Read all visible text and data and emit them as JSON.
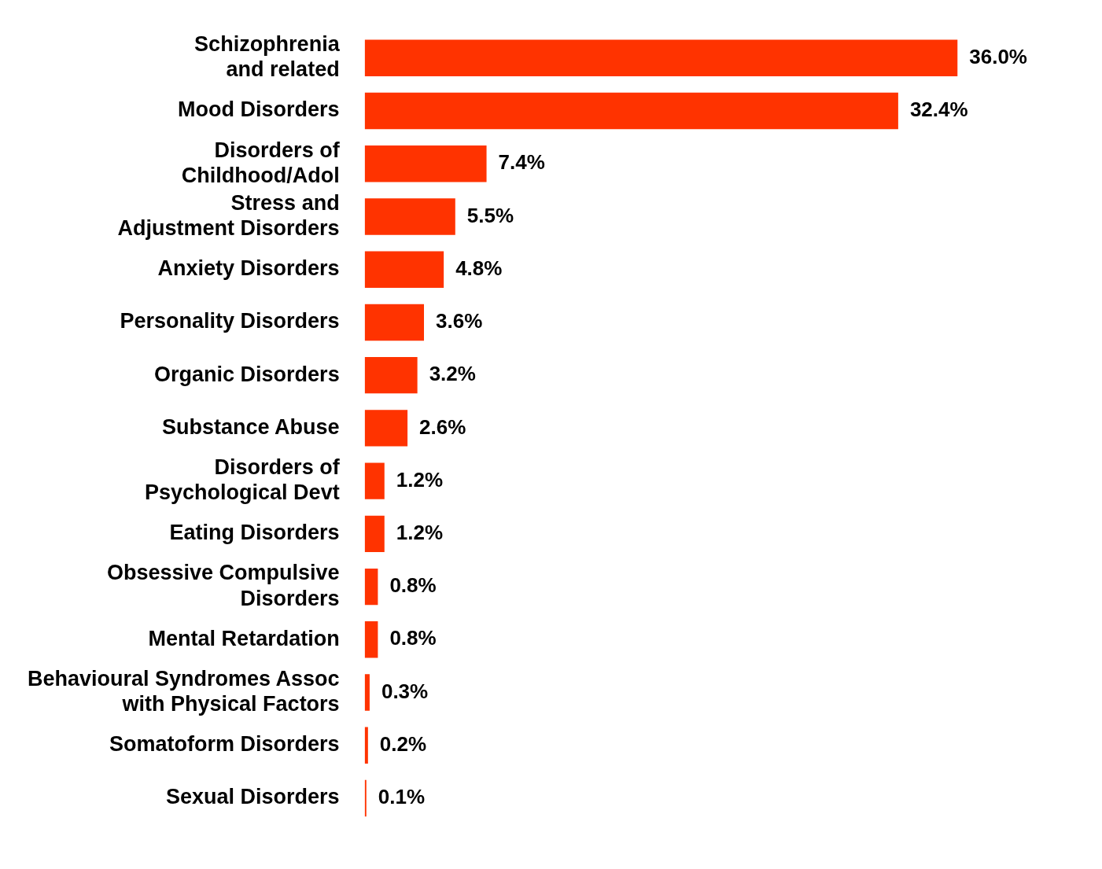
{
  "chart_data": {
    "type": "bar",
    "orientation": "horizontal",
    "categories": [
      "Schizophrenia\nand related",
      "Mood Disorders",
      "Disorders of\nChildhood/Adol",
      "Stress and\nAdjustment Disorders",
      "Anxiety Disorders",
      "Personality Disorders",
      "Organic Disorders",
      "Substance Abuse",
      "Disorders of\nPsychological Devt",
      "Eating Disorders",
      "Obsessive Compulsive\nDisorders",
      "Mental Retardation",
      "Behavioural Syndromes Assoc\nwith Physical Factors",
      "Somatoform Disorders",
      "Sexual Disorders"
    ],
    "values": [
      36.0,
      32.4,
      7.4,
      5.5,
      4.8,
      3.6,
      3.2,
      2.6,
      1.2,
      1.2,
      0.8,
      0.8,
      0.3,
      0.2,
      0.1
    ],
    "value_labels": [
      "36.0%",
      "32.4%",
      "7.4%",
      "5.5%",
      "4.8%",
      "3.6%",
      "3.2%",
      "2.6%",
      "1.2%",
      "1.2%",
      "0.8%",
      "0.8%",
      "0.3%",
      "0.2%",
      "0.1%"
    ],
    "color": "#ff3300",
    "tick_labels": "y"
  }
}
